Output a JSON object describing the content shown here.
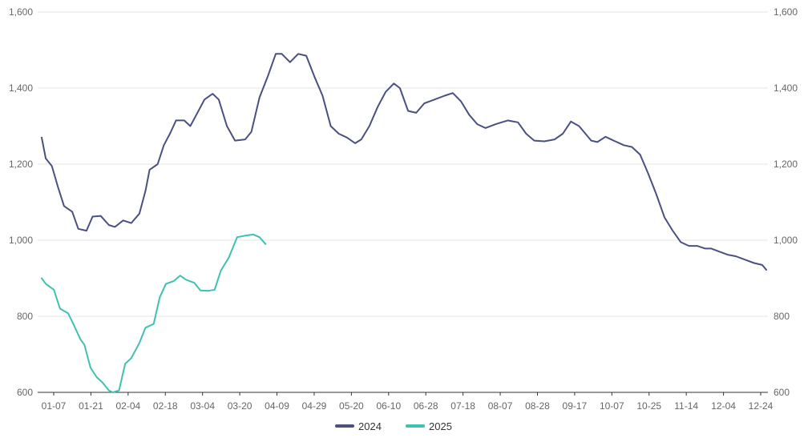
{
  "chart_data": {
    "type": "line",
    "x_ticks": [
      "01-07",
      "01-21",
      "02-04",
      "02-18",
      "03-04",
      "03-20",
      "04-09",
      "04-29",
      "05-20",
      "06-10",
      "06-28",
      "07-18",
      "08-07",
      "08-28",
      "09-17",
      "10-07",
      "10-25",
      "11-14",
      "12-04",
      "12-24"
    ],
    "y_ticks": [
      "600",
      "800",
      "1,000",
      "1,200",
      "1,400",
      "1,600"
    ],
    "y_ticks_right": [
      "600",
      "800",
      "1,000",
      "1,200",
      "1,400",
      "1,600"
    ],
    "ylim": [
      600,
      1600
    ],
    "grid": true,
    "legend_position": "bottom",
    "series": [
      {
        "name": "2024",
        "color": "#4a5080",
        "points": [
          [
            "01-01",
            1270
          ],
          [
            "01-03",
            1215
          ],
          [
            "01-06",
            1195
          ],
          [
            "01-09",
            1140
          ],
          [
            "01-12",
            1090
          ],
          [
            "01-16",
            1075
          ],
          [
            "01-19",
            1030
          ],
          [
            "01-23",
            1025
          ],
          [
            "01-26",
            1062
          ],
          [
            "01-30",
            1064
          ],
          [
            "02-03",
            1040
          ],
          [
            "02-06",
            1035
          ],
          [
            "02-10",
            1052
          ],
          [
            "02-14",
            1045
          ],
          [
            "02-18",
            1070
          ],
          [
            "02-21",
            1130
          ],
          [
            "02-23",
            1185
          ],
          [
            "02-27",
            1200
          ],
          [
            "03-01",
            1250
          ],
          [
            "03-04",
            1280
          ],
          [
            "03-07",
            1315
          ],
          [
            "03-11",
            1315
          ],
          [
            "03-14",
            1300
          ],
          [
            "03-17",
            1330
          ],
          [
            "03-21",
            1370
          ],
          [
            "03-25",
            1385
          ],
          [
            "03-28",
            1370
          ],
          [
            "04-01",
            1300
          ],
          [
            "04-05",
            1262
          ],
          [
            "04-10",
            1265
          ],
          [
            "04-13",
            1285
          ],
          [
            "04-17",
            1375
          ],
          [
            "04-21",
            1430
          ],
          [
            "04-25",
            1490
          ],
          [
            "04-28",
            1490
          ],
          [
            "05-02",
            1468
          ],
          [
            "05-06",
            1490
          ],
          [
            "05-10",
            1485
          ],
          [
            "05-14",
            1430
          ],
          [
            "05-18",
            1380
          ],
          [
            "05-22",
            1300
          ],
          [
            "05-26",
            1280
          ],
          [
            "05-30",
            1270
          ],
          [
            "06-03",
            1255
          ],
          [
            "06-06",
            1265
          ],
          [
            "06-10",
            1300
          ],
          [
            "06-14",
            1350
          ],
          [
            "06-18",
            1390
          ],
          [
            "06-22",
            1412
          ],
          [
            "06-25",
            1400
          ],
          [
            "06-29",
            1340
          ],
          [
            "07-03",
            1335
          ],
          [
            "07-07",
            1360
          ],
          [
            "07-12",
            1370
          ],
          [
            "07-17",
            1380
          ],
          [
            "07-21",
            1387
          ],
          [
            "07-25",
            1365
          ],
          [
            "07-29",
            1330
          ],
          [
            "08-02",
            1305
          ],
          [
            "08-06",
            1295
          ],
          [
            "08-11",
            1305
          ],
          [
            "08-17",
            1315
          ],
          [
            "08-22",
            1310
          ],
          [
            "08-26",
            1280
          ],
          [
            "08-30",
            1262
          ],
          [
            "09-04",
            1260
          ],
          [
            "09-09",
            1265
          ],
          [
            "09-13",
            1280
          ],
          [
            "09-17",
            1312
          ],
          [
            "09-21",
            1300
          ],
          [
            "09-27",
            1262
          ],
          [
            "09-30",
            1258
          ],
          [
            "10-04",
            1272
          ],
          [
            "10-08",
            1262
          ],
          [
            "10-13",
            1250
          ],
          [
            "10-17",
            1245
          ],
          [
            "10-21",
            1225
          ],
          [
            "10-25",
            1175
          ],
          [
            "10-29",
            1120
          ],
          [
            "11-02",
            1060
          ],
          [
            "11-06",
            1025
          ],
          [
            "11-10",
            995
          ],
          [
            "11-14",
            985
          ],
          [
            "11-18",
            985
          ],
          [
            "11-22",
            978
          ],
          [
            "11-25",
            978
          ],
          [
            "11-29",
            970
          ],
          [
            "12-03",
            962
          ],
          [
            "12-07",
            958
          ],
          [
            "12-11",
            950
          ],
          [
            "12-16",
            940
          ],
          [
            "12-20",
            935
          ],
          [
            "12-22",
            922
          ]
        ]
      },
      {
        "name": "2025",
        "color": "#3fc1b0",
        "points": [
          [
            "01-01",
            900
          ],
          [
            "01-03",
            885
          ],
          [
            "01-07",
            870
          ],
          [
            "01-10",
            820
          ],
          [
            "01-14",
            808
          ],
          [
            "01-17",
            775
          ],
          [
            "01-20",
            740
          ],
          [
            "01-22",
            725
          ],
          [
            "01-25",
            665
          ],
          [
            "01-28",
            640
          ],
          [
            "01-31",
            625
          ],
          [
            "02-03",
            605
          ],
          [
            "02-05",
            600
          ],
          [
            "02-08",
            605
          ],
          [
            "02-11",
            675
          ],
          [
            "02-14",
            690
          ],
          [
            "02-18",
            730
          ],
          [
            "02-21",
            770
          ],
          [
            "02-25",
            780
          ],
          [
            "02-28",
            850
          ],
          [
            "03-02",
            885
          ],
          [
            "03-06",
            893
          ],
          [
            "03-09",
            907
          ],
          [
            "03-12",
            896
          ],
          [
            "03-16",
            888
          ],
          [
            "03-19",
            868
          ],
          [
            "03-23",
            867
          ],
          [
            "03-26",
            870
          ],
          [
            "03-29",
            920
          ],
          [
            "04-02",
            955
          ],
          [
            "04-06",
            1008
          ],
          [
            "04-10",
            1012
          ],
          [
            "04-14",
            1015
          ],
          [
            "04-17",
            1008
          ],
          [
            "04-20",
            990
          ]
        ]
      }
    ]
  }
}
